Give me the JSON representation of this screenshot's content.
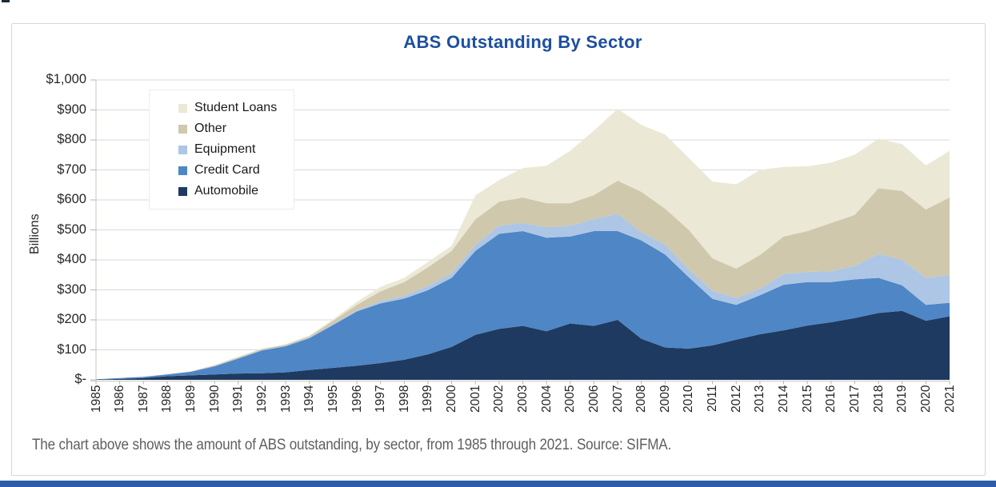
{
  "page": {
    "caption": "The chart above shows the amount of ABS outstanding, by sector, from 1985 through 2021. Source: SIFMA.",
    "accent_bar_color": "#2b5ca9"
  },
  "chart_data": {
    "type": "area",
    "stacked": true,
    "title": "ABS Outstanding By Sector",
    "title_color": "#1d4fa0",
    "ylabel": "Billions",
    "xlabel": "",
    "ylim": [
      0,
      1000
    ],
    "ytick_step": 100,
    "ytick_labels_top_to_bottom": [
      "$1,000",
      "$900",
      "$800",
      "$700",
      "$600",
      "$500",
      "$400",
      "$300",
      "$200",
      "$100",
      "$-"
    ],
    "grid": "horizontal",
    "years": [
      1985,
      1986,
      1987,
      1988,
      1989,
      1990,
      1991,
      1992,
      1993,
      1994,
      1995,
      1996,
      1997,
      1998,
      1999,
      2000,
      2001,
      2002,
      2003,
      2004,
      2005,
      2006,
      2007,
      2008,
      2009,
      2010,
      2011,
      2012,
      2013,
      2014,
      2015,
      2016,
      2017,
      2018,
      2019,
      2020,
      2021
    ],
    "series": [
      {
        "name": "Automobile",
        "color": "#1f3a60",
        "values": [
          1,
          3,
          6,
          12,
          15,
          18,
          21,
          22,
          25,
          33,
          40,
          47,
          56,
          67,
          85,
          110,
          150,
          170,
          180,
          162,
          188,
          180,
          200,
          137,
          108,
          104,
          115,
          134,
          152,
          165,
          181,
          192,
          206,
          223,
          230,
          197,
          212
        ]
      },
      {
        "name": "Credit Card",
        "color": "#4f86c5",
        "values": [
          1,
          3,
          4,
          6,
          12,
          27,
          50,
          76,
          87,
          106,
          143,
          181,
          199,
          204,
          214,
          230,
          280,
          317,
          316,
          312,
          290,
          316,
          296,
          328,
          310,
          238,
          155,
          116,
          130,
          152,
          145,
          134,
          129,
          117,
          85,
          53,
          45
        ]
      },
      {
        "name": "Equipment",
        "color": "#adc6e6",
        "values": [
          0,
          0,
          0,
          0,
          0,
          1,
          1,
          2,
          2,
          2,
          3,
          4,
          7,
          9,
          14,
          15,
          20,
          27,
          27,
          35,
          36,
          40,
          58,
          27,
          33,
          26,
          27,
          23,
          22,
          36,
          34,
          36,
          45,
          80,
          85,
          90,
          92
        ]
      },
      {
        "name": "Other",
        "color": "#cfc8ad",
        "values": [
          0,
          0,
          0,
          1,
          1,
          2,
          3,
          3,
          3,
          4,
          11,
          18,
          33,
          46,
          62,
          75,
          85,
          80,
          85,
          80,
          75,
          80,
          110,
          135,
          120,
          132,
          108,
          98,
          112,
          125,
          136,
          161,
          170,
          219,
          230,
          228,
          259
        ]
      },
      {
        "name": "Student Loans",
        "color": "#ebe8d6",
        "values": [
          0,
          0,
          0,
          0,
          1,
          2,
          3,
          1,
          2,
          3,
          5,
          10,
          15,
          14,
          18,
          17,
          80,
          72,
          98,
          125,
          175,
          215,
          240,
          223,
          247,
          240,
          256,
          281,
          284,
          232,
          216,
          201,
          201,
          165,
          156,
          147,
          156
        ]
      }
    ],
    "legend": {
      "position": "top-left-inside-plot",
      "items_top_to_bottom": [
        {
          "label": "Student Loans",
          "color": "#ebe8d6"
        },
        {
          "label": "Other",
          "color": "#cfc8ad"
        },
        {
          "label": "Equipment",
          "color": "#adc6e6"
        },
        {
          "label": "Credit Card",
          "color": "#4f86c5"
        },
        {
          "label": "Automobile",
          "color": "#1f3a60"
        }
      ]
    }
  }
}
